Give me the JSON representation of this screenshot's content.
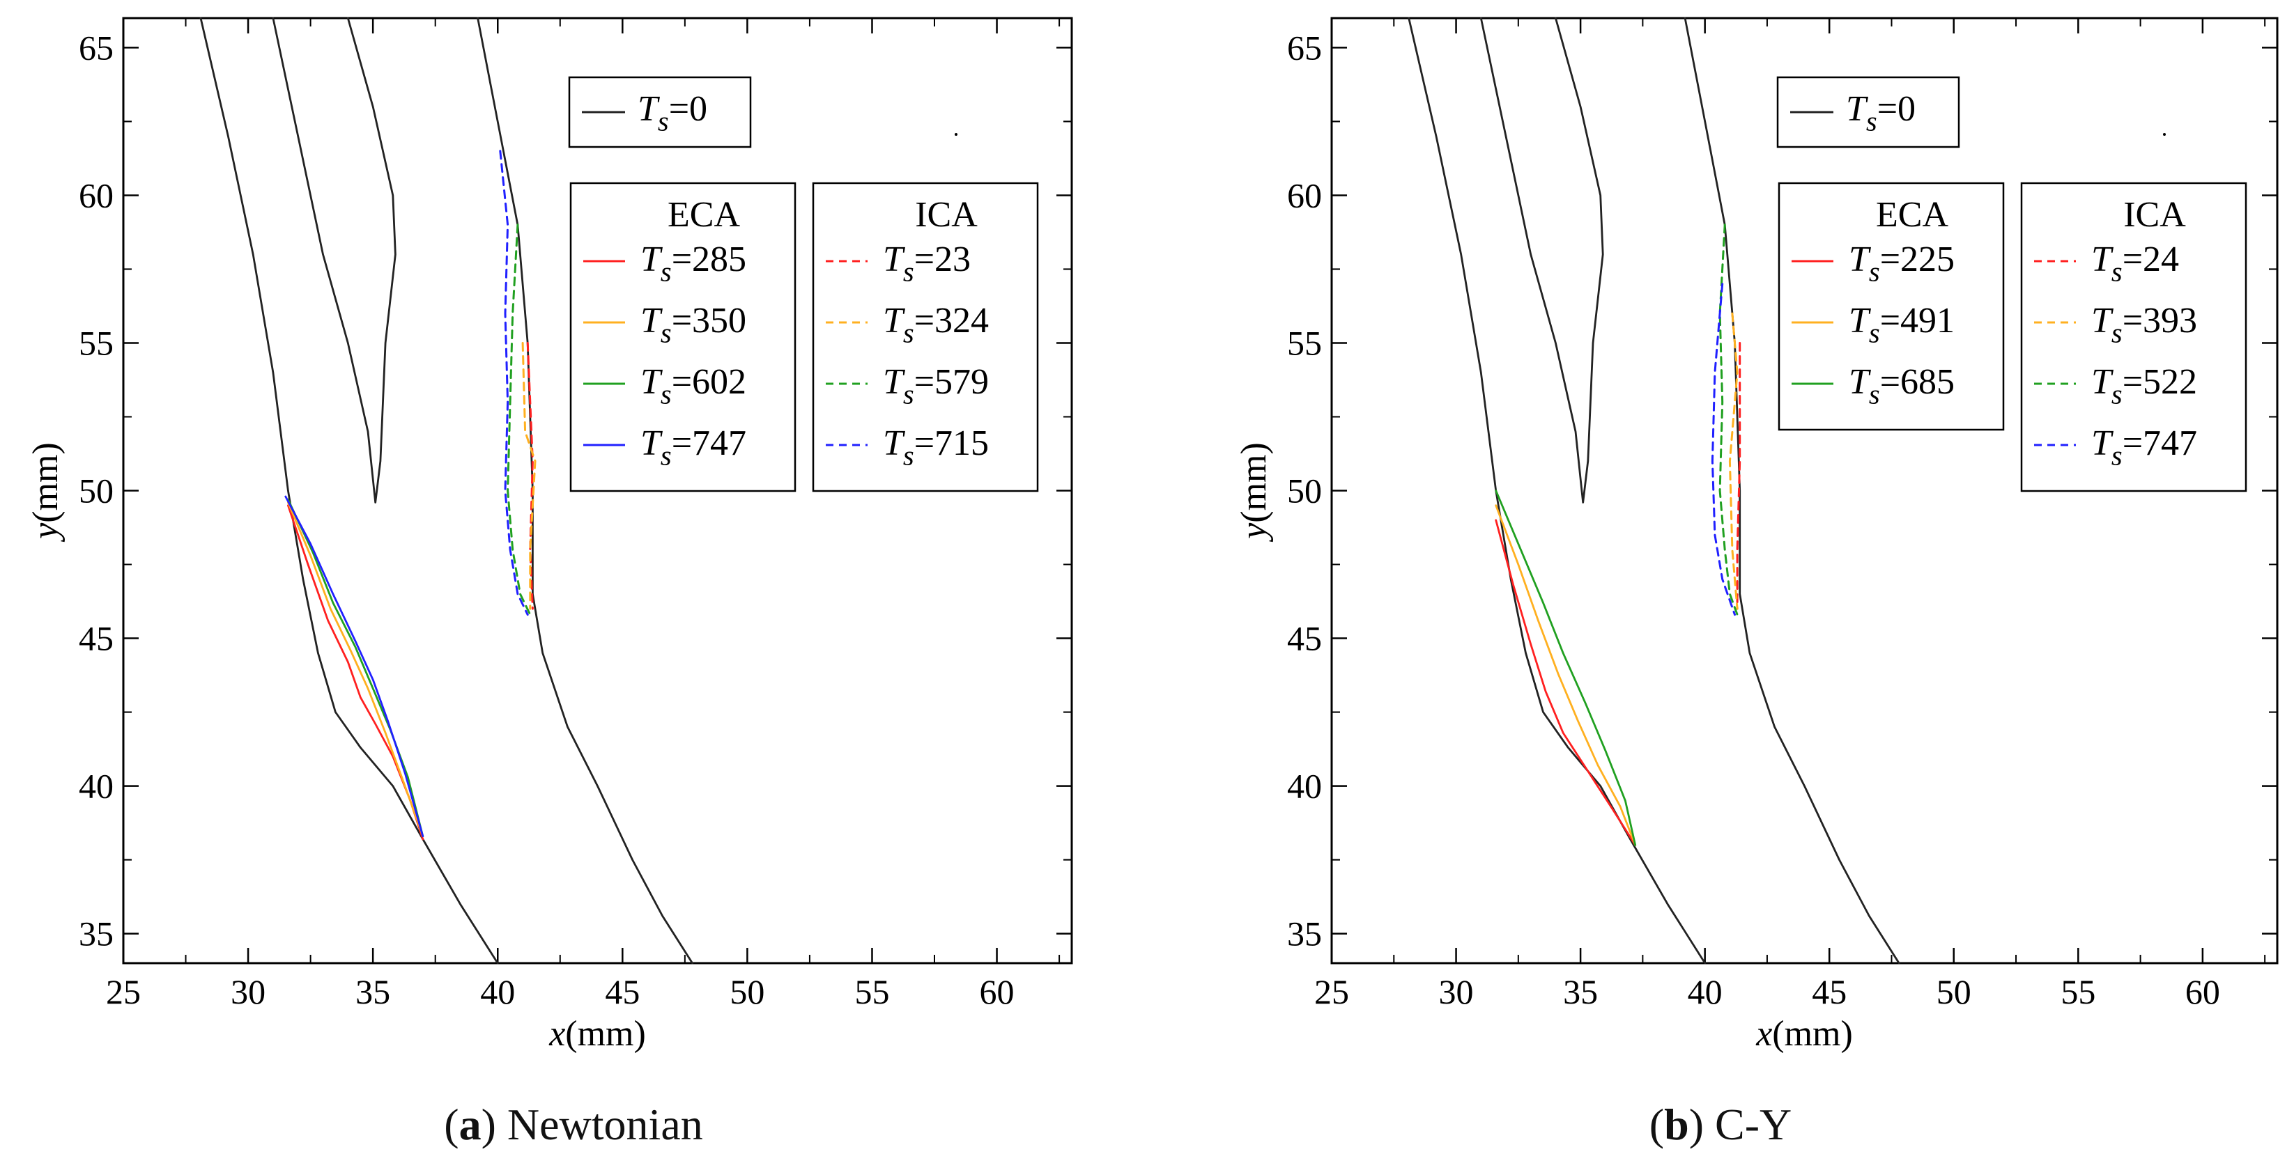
{
  "figure": {
    "caption_a": {
      "letter": "a",
      "text": "Newtonian"
    },
    "caption_b": {
      "letter": "b",
      "text": "C-Y"
    }
  },
  "chart_data": [
    {
      "panel": "a",
      "type": "line",
      "title": "",
      "caption": "(a) Newtonian",
      "xlabel": "x(mm)",
      "ylabel": "y(mm)",
      "xlim": [
        25,
        63
      ],
      "ylim": [
        34,
        66
      ],
      "xticks": [
        25,
        30,
        35,
        40,
        45,
        50,
        55,
        60
      ],
      "yticks": [
        35,
        40,
        45,
        50,
        55,
        60,
        65
      ],
      "legend_ts0": {
        "label": "T_s=0",
        "color": "#222222"
      },
      "legend_groups": [
        {
          "title": "ECA",
          "entries": [
            {
              "label": "T_s=285",
              "color": "#ff2020",
              "dash": "solid"
            },
            {
              "label": "T_s=350",
              "color": "#ffb020",
              "dash": "solid"
            },
            {
              "label": "T_s=602",
              "color": "#20a020",
              "dash": "solid"
            },
            {
              "label": "T_s=747",
              "color": "#2020ff",
              "dash": "solid"
            }
          ]
        },
        {
          "title": "ICA",
          "entries": [
            {
              "label": "T_s=23",
              "color": "#ff2020",
              "dash": "dashed"
            },
            {
              "label": "T_s=324",
              "color": "#ffb020",
              "dash": "dashed"
            },
            {
              "label": "T_s=579",
              "color": "#20a020",
              "dash": "dashed"
            },
            {
              "label": "T_s=715",
              "color": "#2020ff",
              "dash": "dashed"
            }
          ]
        }
      ],
      "series": [
        {
          "name": "T_s=0 wall left",
          "color": "#222222",
          "dash": "solid",
          "points": [
            [
              28.1,
              66
            ],
            [
              29.2,
              62
            ],
            [
              30.2,
              58
            ],
            [
              31.0,
              54
            ],
            [
              31.6,
              50
            ],
            [
              32.2,
              47
            ],
            [
              32.8,
              44.5
            ],
            [
              33.5,
              42.5
            ],
            [
              34.5,
              41.3
            ],
            [
              35.8,
              40
            ],
            [
              37.0,
              38.2
            ],
            [
              38.5,
              36
            ],
            [
              40.0,
              34
            ]
          ]
        },
        {
          "name": "T_s=0 ECA wall",
          "color": "#222222",
          "dash": "solid",
          "points": [
            [
              31.0,
              66
            ],
            [
              32.0,
              62
            ],
            [
              33.0,
              58
            ],
            [
              34.0,
              55
            ],
            [
              34.8,
              52
            ],
            [
              35.1,
              49.6
            ],
            [
              35.3,
              51
            ],
            [
              35.5,
              55
            ],
            [
              35.9,
              58
            ],
            [
              35.8,
              60
            ],
            [
              35.0,
              63
            ],
            [
              34.0,
              66
            ]
          ]
        },
        {
          "name": "T_s=0 ICA wall",
          "color": "#222222",
          "dash": "solid",
          "points": [
            [
              39.2,
              66
            ],
            [
              40.0,
              62.5
            ],
            [
              40.8,
              59
            ],
            [
              41.2,
              55
            ],
            [
              41.4,
              50
            ],
            [
              41.4,
              46.5
            ],
            [
              41.8,
              44.5
            ],
            [
              42.8,
              42
            ],
            [
              44.0,
              40
            ],
            [
              45.4,
              37.5
            ],
            [
              46.6,
              35.6
            ],
            [
              47.8,
              34
            ]
          ]
        },
        {
          "name": "ECA T_s=285",
          "color": "#ff2020",
          "dash": "solid",
          "points": [
            [
              31.6,
              49.5
            ],
            [
              32.4,
              47.5
            ],
            [
              33.2,
              45.6
            ],
            [
              34.0,
              44.2
            ],
            [
              34.5,
              43
            ],
            [
              35.1,
              42.1
            ],
            [
              35.8,
              41
            ],
            [
              36.5,
              39.5
            ],
            [
              37.0,
              38.2
            ]
          ]
        },
        {
          "name": "ECA T_s=350",
          "color": "#ffb020",
          "dash": "solid",
          "points": [
            [
              31.6,
              49.6
            ],
            [
              32.5,
              47.8
            ],
            [
              33.3,
              46
            ],
            [
              34.1,
              44.6
            ],
            [
              34.8,
              43.3
            ],
            [
              35.5,
              41.8
            ],
            [
              36.2,
              40.2
            ],
            [
              37.0,
              38.3
            ]
          ]
        },
        {
          "name": "ECA T_s=602",
          "color": "#20a020",
          "dash": "solid",
          "points": [
            [
              31.6,
              49.7
            ],
            [
              32.6,
              47.9
            ],
            [
              33.4,
              46.2
            ],
            [
              34.3,
              44.7
            ],
            [
              35.0,
              43.3
            ],
            [
              35.7,
              41.9
            ],
            [
              36.4,
              40.3
            ],
            [
              37.0,
              38.3
            ]
          ]
        },
        {
          "name": "ECA T_s=747",
          "color": "#2020ff",
          "dash": "solid",
          "points": [
            [
              31.5,
              49.8
            ],
            [
              32.5,
              48.2
            ],
            [
              33.4,
              46.5
            ],
            [
              34.3,
              44.9
            ],
            [
              35.0,
              43.6
            ],
            [
              35.6,
              42.2
            ],
            [
              36.3,
              40.4
            ],
            [
              37.0,
              38.3
            ]
          ]
        },
        {
          "name": "ICA T_s=23",
          "color": "#ff2020",
          "dash": "dashed",
          "points": [
            [
              41.2,
              55
            ],
            [
              41.4,
              51
            ],
            [
              41.3,
              48
            ],
            [
              41.4,
              46
            ]
          ]
        },
        {
          "name": "ICA T_s=324",
          "color": "#ffb020",
          "dash": "dashed",
          "points": [
            [
              41.0,
              55
            ],
            [
              41.1,
              52
            ],
            [
              41.5,
              51
            ],
            [
              41.3,
              48
            ],
            [
              41.3,
              46
            ]
          ]
        },
        {
          "name": "ICA T_s=579",
          "color": "#20a020",
          "dash": "dashed",
          "points": [
            [
              40.8,
              59
            ],
            [
              40.6,
              56
            ],
            [
              40.5,
              53
            ],
            [
              40.4,
              50
            ],
            [
              40.6,
              48
            ],
            [
              40.9,
              46.5
            ],
            [
              41.3,
              45.8
            ]
          ]
        },
        {
          "name": "ICA T_s=715",
          "color": "#2020ff",
          "dash": "dashed",
          "points": [
            [
              40.1,
              61.5
            ],
            [
              40.4,
              59
            ],
            [
              40.3,
              56
            ],
            [
              40.4,
              53
            ],
            [
              40.3,
              50
            ],
            [
              40.5,
              48
            ],
            [
              40.8,
              46.5
            ],
            [
              41.2,
              45.8
            ]
          ]
        }
      ]
    },
    {
      "panel": "b",
      "type": "line",
      "title": "",
      "caption": "(b) C-Y",
      "xlabel": "x(mm)",
      "ylabel": "y(mm)",
      "xlim": [
        25,
        63
      ],
      "ylim": [
        34,
        66
      ],
      "xticks": [
        25,
        30,
        35,
        40,
        45,
        50,
        55,
        60
      ],
      "yticks": [
        35,
        40,
        45,
        50,
        55,
        60,
        65
      ],
      "legend_ts0": {
        "label": "T_s=0",
        "color": "#222222"
      },
      "legend_groups": [
        {
          "title": "ECA",
          "entries": [
            {
              "label": "T_s=225",
              "color": "#ff2020",
              "dash": "solid"
            },
            {
              "label": "T_s=491",
              "color": "#ffb020",
              "dash": "solid"
            },
            {
              "label": "T_s=685",
              "color": "#20a020",
              "dash": "solid"
            }
          ]
        },
        {
          "title": "ICA",
          "entries": [
            {
              "label": "T_s=24",
              "color": "#ff2020",
              "dash": "dashed"
            },
            {
              "label": "T_s=393",
              "color": "#ffb020",
              "dash": "dashed"
            },
            {
              "label": "T_s=522",
              "color": "#20a020",
              "dash": "dashed"
            },
            {
              "label": "T_s=747",
              "color": "#2020ff",
              "dash": "dashed"
            }
          ]
        }
      ],
      "series": [
        {
          "name": "T_s=0 wall left",
          "color": "#222222",
          "dash": "solid",
          "points": [
            [
              28.1,
              66
            ],
            [
              29.2,
              62
            ],
            [
              30.2,
              58
            ],
            [
              31.0,
              54
            ],
            [
              31.6,
              50
            ],
            [
              32.2,
              47
            ],
            [
              32.8,
              44.5
            ],
            [
              33.5,
              42.5
            ],
            [
              34.5,
              41.3
            ],
            [
              35.8,
              40
            ],
            [
              37.0,
              38.2
            ],
            [
              38.5,
              36
            ],
            [
              40.0,
              34
            ]
          ]
        },
        {
          "name": "T_s=0 ECA wall",
          "color": "#222222",
          "dash": "solid",
          "points": [
            [
              31.0,
              66
            ],
            [
              32.0,
              62
            ],
            [
              33.0,
              58
            ],
            [
              34.0,
              55
            ],
            [
              34.8,
              52
            ],
            [
              35.1,
              49.6
            ],
            [
              35.3,
              51
            ],
            [
              35.5,
              55
            ],
            [
              35.9,
              58
            ],
            [
              35.8,
              60
            ],
            [
              35.0,
              63
            ],
            [
              34.0,
              66
            ]
          ]
        },
        {
          "name": "T_s=0 ICA wall",
          "color": "#222222",
          "dash": "solid",
          "points": [
            [
              39.2,
              66
            ],
            [
              40.0,
              62.5
            ],
            [
              40.8,
              59
            ],
            [
              41.2,
              55
            ],
            [
              41.4,
              50
            ],
            [
              41.4,
              46.5
            ],
            [
              41.8,
              44.5
            ],
            [
              42.8,
              42
            ],
            [
              44.0,
              40
            ],
            [
              45.4,
              37.5
            ],
            [
              46.6,
              35.6
            ],
            [
              47.8,
              34
            ]
          ]
        },
        {
          "name": "ECA T_s=225",
          "color": "#ff2020",
          "dash": "solid",
          "points": [
            [
              31.6,
              49
            ],
            [
              32.3,
              46.8
            ],
            [
              33.0,
              44.8
            ],
            [
              33.6,
              43.2
            ],
            [
              34.3,
              41.8
            ],
            [
              35.3,
              40.5
            ],
            [
              36.3,
              39.2
            ],
            [
              37.2,
              38
            ]
          ]
        },
        {
          "name": "ECA T_s=491",
          "color": "#ffb020",
          "dash": "solid",
          "points": [
            [
              31.6,
              49.5
            ],
            [
              32.5,
              47.5
            ],
            [
              33.3,
              45.6
            ],
            [
              34.1,
              43.8
            ],
            [
              34.9,
              42.2
            ],
            [
              35.7,
              40.7
            ],
            [
              36.6,
              39.3
            ],
            [
              37.2,
              38
            ]
          ]
        },
        {
          "name": "ECA T_s=685",
          "color": "#20a020",
          "dash": "solid",
          "points": [
            [
              31.6,
              50
            ],
            [
              32.6,
              48
            ],
            [
              33.5,
              46.2
            ],
            [
              34.3,
              44.5
            ],
            [
              35.2,
              42.8
            ],
            [
              36.0,
              41.2
            ],
            [
              36.8,
              39.5
            ],
            [
              37.2,
              38
            ]
          ]
        },
        {
          "name": "ICA T_s=24",
          "color": "#ff2020",
          "dash": "dashed",
          "points": [
            [
              41.4,
              55
            ],
            [
              41.4,
              51
            ],
            [
              41.3,
              48
            ],
            [
              41.3,
              46
            ]
          ]
        },
        {
          "name": "ICA T_s=393",
          "color": "#ffb020",
          "dash": "dashed",
          "points": [
            [
              41.1,
              56
            ],
            [
              41.3,
              54
            ],
            [
              41.0,
              51
            ],
            [
              41.1,
              48
            ],
            [
              41.3,
              46
            ]
          ]
        },
        {
          "name": "ICA T_s=522",
          "color": "#20a020",
          "dash": "dashed",
          "points": [
            [
              40.8,
              59
            ],
            [
              40.6,
              56
            ],
            [
              40.7,
              53
            ],
            [
              40.6,
              50
            ],
            [
              40.8,
              48
            ],
            [
              41.0,
              46.5
            ],
            [
              41.3,
              45.8
            ]
          ]
        },
        {
          "name": "ICA T_s=747",
          "color": "#2020ff",
          "dash": "dashed",
          "points": [
            [
              40.7,
              57
            ],
            [
              40.4,
              54
            ],
            [
              40.3,
              51
            ],
            [
              40.4,
              48.5
            ],
            [
              40.7,
              47
            ],
            [
              41.2,
              45.8
            ]
          ]
        }
      ]
    }
  ]
}
